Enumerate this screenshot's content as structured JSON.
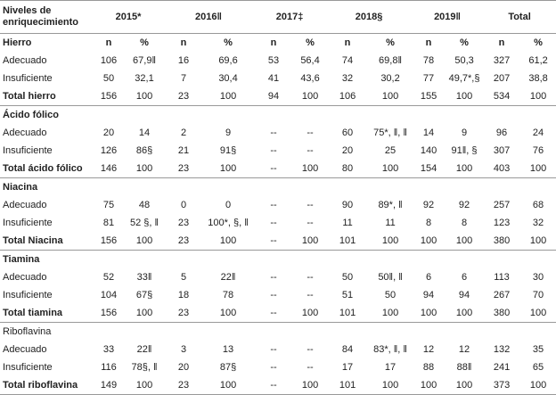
{
  "header": {
    "label": "Niveles de enriquecimiento",
    "years": [
      "2015*",
      "2016‖",
      "2017‡",
      "2018§",
      "2019‖",
      "Total"
    ],
    "subheader": [
      "n",
      "%",
      "n",
      "%",
      "n",
      "%",
      "n",
      "%",
      "n",
      "%",
      "n",
      "%"
    ]
  },
  "sections": [
    {
      "name": "Hierro",
      "rows": [
        [
          "Adecuado",
          "106",
          "67,9‖",
          "16",
          "69,6",
          "53",
          "56,4",
          "74",
          "69,8‖",
          "78",
          "50,3",
          "327",
          "61,2"
        ],
        [
          "Insuficiente",
          "50",
          "32,1",
          "7",
          "30,4",
          "41",
          "43,6",
          "32",
          "30,2",
          "77",
          "49,7*,§",
          "207",
          "38,8"
        ],
        [
          "Total hierro",
          "156",
          "100",
          "23",
          "100",
          "94",
          "100",
          "106",
          "100",
          "155",
          "100",
          "534",
          "100"
        ]
      ]
    },
    {
      "name": "Ácido fólico",
      "rows": [
        [
          "Adecuado",
          "20",
          "14",
          "2",
          "9",
          "--",
          "--",
          "60",
          "75*, ‖, ‖",
          "14",
          "9",
          "96",
          "24"
        ],
        [
          "Insuficiente",
          "126",
          "86§",
          "21",
          "91§",
          "--",
          "--",
          "20",
          "25",
          "140",
          "91‖, §",
          "307",
          "76"
        ],
        [
          "Total ácido fólico",
          "146",
          "100",
          "23",
          "100",
          "--",
          "100",
          "80",
          "100",
          "154",
          "100",
          "403",
          "100"
        ]
      ]
    },
    {
      "name": "Niacina",
      "rows": [
        [
          "Adecuado",
          "75",
          "48",
          "0",
          "0",
          "--",
          "--",
          "90",
          "89*, ‖",
          "92",
          "92",
          "257",
          "68"
        ],
        [
          "Insuficiente",
          "81",
          "52 §, ‖",
          "23",
          "100*, §, ‖",
          "--",
          "--",
          "11",
          "11",
          "8",
          "8",
          "123",
          "32"
        ],
        [
          "Total Niacina",
          "156",
          "100",
          "23",
          "100",
          "--",
          "100",
          "101",
          "100",
          "100",
          "100",
          "380",
          "100"
        ]
      ]
    },
    {
      "name": "Tiamina",
      "rows": [
        [
          "Adecuado",
          "52",
          "33‖",
          "5",
          "22‖",
          "--",
          "--",
          "50",
          "50‖, ‖",
          "6",
          "6",
          "113",
          "30"
        ],
        [
          "Insuficiente",
          "104",
          "67§",
          "18",
          "78",
          "--",
          "--",
          "51",
          "50",
          "94",
          "94",
          "267",
          "70"
        ],
        [
          "Total tiamina",
          "156",
          "100",
          "23",
          "100",
          "--",
          "100",
          "101",
          "100",
          "100",
          "100",
          "380",
          "100"
        ]
      ]
    },
    {
      "name": "Riboflavina",
      "rows": [
        [
          "Adecuado",
          "33",
          "22‖",
          "3",
          "13",
          "--",
          "--",
          "84",
          "83*, ‖, ‖",
          "12",
          "12",
          "132",
          "35"
        ],
        [
          "Insuficiente",
          "116",
          "78§, ‖",
          "20",
          "87§",
          "--",
          "--",
          "17",
          "17",
          "88",
          "88‖",
          "241",
          "65"
        ],
        [
          "Total riboflavina",
          "149",
          "100",
          "23",
          "100",
          "--",
          "100",
          "101",
          "100",
          "100",
          "100",
          "373",
          "100"
        ]
      ]
    }
  ]
}
